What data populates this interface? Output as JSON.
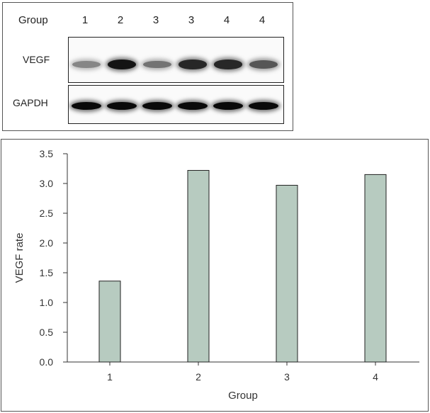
{
  "blot": {
    "header_label": "Group",
    "lanes": [
      "1",
      "2",
      "3",
      "3",
      "4",
      "4"
    ],
    "vegf_label": "VEGF",
    "gapdh_label": "GAPDH",
    "vegf_intensity": [
      0.35,
      0.95,
      0.45,
      0.85,
      0.85,
      0.6
    ],
    "gapdh_intensity": [
      1.0,
      1.0,
      1.0,
      1.0,
      1.0,
      1.0
    ]
  },
  "chart_data": {
    "type": "bar",
    "categories": [
      "1",
      "2",
      "3",
      "4"
    ],
    "values": [
      1.36,
      3.22,
      2.97,
      3.15
    ],
    "xlabel": "Group",
    "ylabel": "VEGF rate",
    "ylim": [
      0,
      3.5
    ],
    "yticks": [
      "0.0",
      "0.5",
      "1.0",
      "1.5",
      "2.0",
      "2.5",
      "3.0",
      "3.5"
    ],
    "bar_color": "#b7cbc0",
    "grid": false
  }
}
